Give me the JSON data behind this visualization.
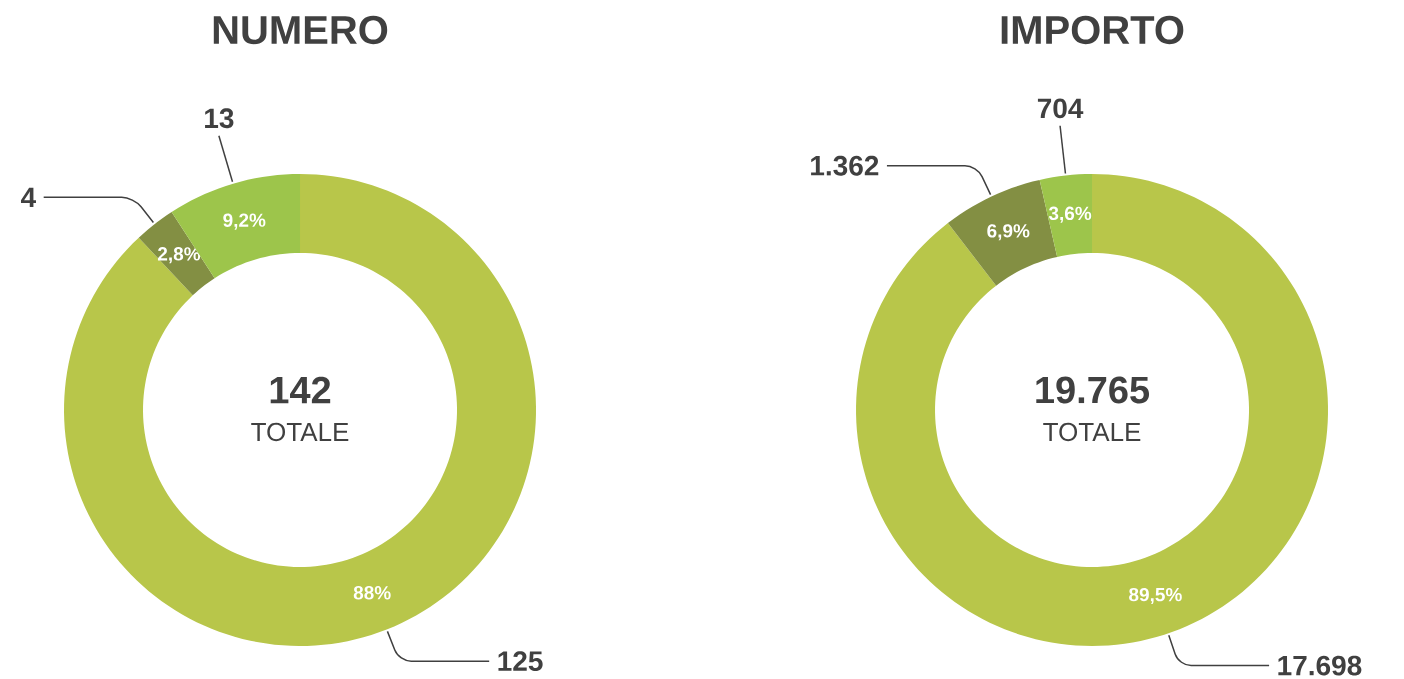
{
  "chart_data": [
    {
      "type": "donut",
      "title": "NUMERO",
      "categories": [
        null,
        null,
        null
      ],
      "values": [
        125,
        4,
        13
      ],
      "colors": [
        "#b8c64a",
        "#838f43",
        "#9dc54b"
      ],
      "value_labels": [
        "125",
        "4",
        "13"
      ],
      "annotations": [
        "142",
        "TOTALE",
        "88%",
        "2,8%",
        "9,2%"
      ]
    },
    {
      "type": "donut",
      "title": "IMPORTO",
      "categories": [
        null,
        null,
        null
      ],
      "values": [
        17698,
        1362,
        704
      ],
      "colors": [
        "#b8c64a",
        "#838f43",
        "#9dc54b"
      ],
      "value_labels": [
        "17.698",
        "1.362",
        "704"
      ],
      "annotations": [
        "19.765",
        "TOTALE",
        "89,5%",
        "6,9%",
        "3,6%"
      ]
    }
  ]
}
